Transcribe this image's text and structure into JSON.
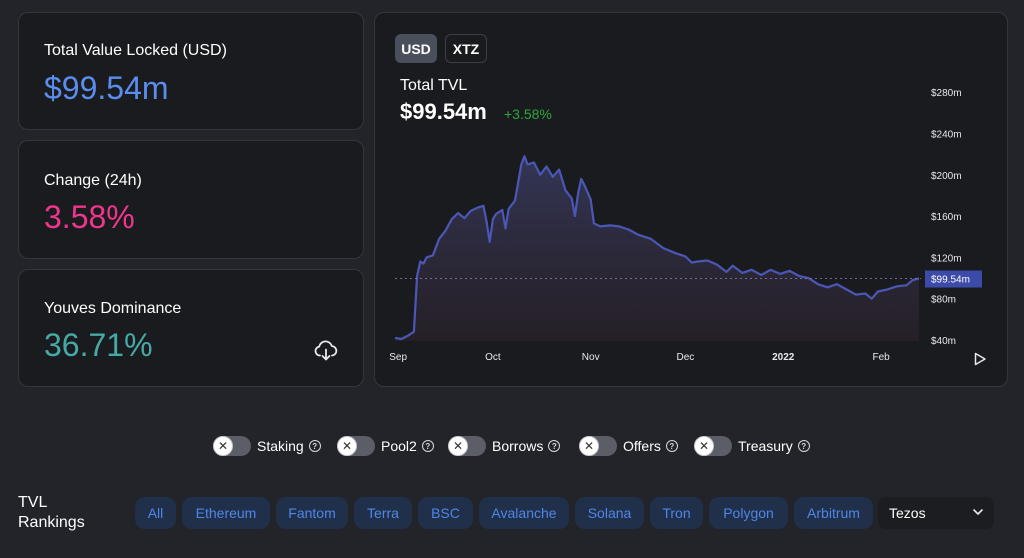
{
  "stats": {
    "tvl": {
      "label": "Total Value Locked (USD)",
      "value": "$99.54m",
      "color": "#5b8def"
    },
    "change": {
      "label": "Change (24h)",
      "value": "3.58%",
      "color": "#f0368c"
    },
    "dominance": {
      "label": "Youves Dominance",
      "value": "36.71%",
      "color": "#46a9a6"
    }
  },
  "chart_panel": {
    "denoms": [
      "USD",
      "XTZ"
    ],
    "active_denom": "USD",
    "title": "Total TVL",
    "value": "$99.54m",
    "change": "+3.58%"
  },
  "chart_data": {
    "type": "area",
    "title": "Total TVL",
    "x_tick_labels": [
      "Sep",
      "Oct",
      "Nov",
      "Dec",
      "2022",
      "Feb"
    ],
    "y_tick_labels": [
      "$40m",
      "$80m",
      "$120m",
      "$160m",
      "$200m",
      "$240m",
      "$280m"
    ],
    "ylim": [
      40,
      280
    ],
    "current_value_label": "$99.54m",
    "current_value": 99.54,
    "series": [
      {
        "color": "#4b57b5",
        "points": [
          [
            "2021-08-31",
            42
          ],
          [
            "2021-09-02",
            41
          ],
          [
            "2021-09-04",
            44
          ],
          [
            "2021-09-06",
            48
          ],
          [
            "2021-09-07",
            102
          ],
          [
            "2021-09-08",
            116
          ],
          [
            "2021-09-09",
            114
          ],
          [
            "2021-09-10",
            120
          ],
          [
            "2021-09-12",
            122
          ],
          [
            "2021-09-14",
            138
          ],
          [
            "2021-09-16",
            146
          ],
          [
            "2021-09-18",
            157
          ],
          [
            "2021-09-20",
            163
          ],
          [
            "2021-09-22",
            158
          ],
          [
            "2021-09-24",
            165
          ],
          [
            "2021-09-26",
            168
          ],
          [
            "2021-09-28",
            170
          ],
          [
            "2021-09-29",
            155
          ],
          [
            "2021-09-30",
            135
          ],
          [
            "2021-10-01",
            157
          ],
          [
            "2021-10-02",
            162
          ],
          [
            "2021-10-04",
            166
          ],
          [
            "2021-10-05",
            148
          ],
          [
            "2021-10-06",
            167
          ],
          [
            "2021-10-08",
            175
          ],
          [
            "2021-10-10",
            210
          ],
          [
            "2021-10-11",
            218
          ],
          [
            "2021-10-12",
            210
          ],
          [
            "2021-10-14",
            212
          ],
          [
            "2021-10-16",
            200
          ],
          [
            "2021-10-18",
            208
          ],
          [
            "2021-10-20",
            198
          ],
          [
            "2021-10-22",
            205
          ],
          [
            "2021-10-24",
            185
          ],
          [
            "2021-10-26",
            177
          ],
          [
            "2021-10-27",
            160
          ],
          [
            "2021-10-28",
            182
          ],
          [
            "2021-10-29",
            196
          ],
          [
            "2021-10-30",
            190
          ],
          [
            "2021-11-01",
            176
          ],
          [
            "2021-11-02",
            153
          ],
          [
            "2021-11-04",
            150
          ],
          [
            "2021-11-07",
            151
          ],
          [
            "2021-11-10",
            150
          ],
          [
            "2021-11-13",
            147
          ],
          [
            "2021-11-16",
            142
          ],
          [
            "2021-11-20",
            138
          ],
          [
            "2021-11-24",
            129
          ],
          [
            "2021-11-28",
            124
          ],
          [
            "2021-12-01",
            121
          ],
          [
            "2021-12-03",
            115
          ],
          [
            "2021-12-05",
            116
          ],
          [
            "2021-12-08",
            117
          ],
          [
            "2021-12-11",
            113
          ],
          [
            "2021-12-14",
            106
          ],
          [
            "2021-12-16",
            112
          ],
          [
            "2021-12-19",
            105
          ],
          [
            "2021-12-22",
            108
          ],
          [
            "2021-12-25",
            103
          ],
          [
            "2021-12-28",
            108
          ],
          [
            "2021-12-31",
            104
          ],
          [
            "2022-01-03",
            107
          ],
          [
            "2022-01-06",
            102
          ],
          [
            "2022-01-09",
            100
          ],
          [
            "2022-01-12",
            94
          ],
          [
            "2022-01-15",
            91
          ],
          [
            "2022-01-18",
            94
          ],
          [
            "2022-01-21",
            89
          ],
          [
            "2022-01-24",
            84
          ],
          [
            "2022-01-27",
            85
          ],
          [
            "2022-01-29",
            80
          ],
          [
            "2022-01-31",
            87
          ],
          [
            "2022-02-03",
            89
          ],
          [
            "2022-02-06",
            92
          ],
          [
            "2022-02-09",
            93
          ],
          [
            "2022-02-11",
            98
          ],
          [
            "2022-02-13",
            99.54
          ]
        ]
      }
    ]
  },
  "toggles": [
    {
      "label": "Staking",
      "off": "✕"
    },
    {
      "label": "Pool2",
      "off": "✕"
    },
    {
      "label": "Borrows",
      "off": "✕"
    },
    {
      "label": "Offers",
      "off": "✕"
    },
    {
      "label": "Treasury",
      "off": "✕"
    }
  ],
  "help_glyph": "?",
  "rankings": {
    "title_line1": "TVL",
    "title_line2": "Rankings",
    "chips": [
      "All",
      "Ethereum",
      "Fantom",
      "Terra",
      "BSC",
      "Avalanche",
      "Solana",
      "Tron",
      "Polygon",
      "Arbitrum"
    ],
    "selected_chain": "Tezos"
  }
}
